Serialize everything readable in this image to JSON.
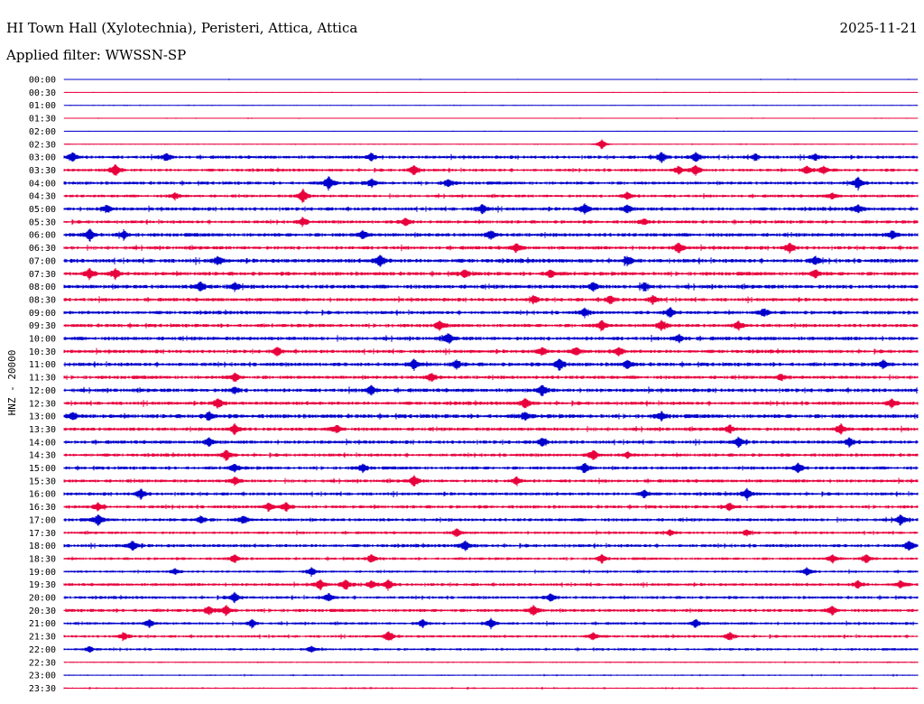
{
  "header": {
    "station": "HI Town Hall (Xylotechnia), Peristeri, Attica, Attica",
    "date": "2025-11-21",
    "filter_label": "Applied filter: WWSSN-SP"
  },
  "chart_data": {
    "type": "line",
    "title": "HI Town Hall (Xylotechnia), Peristeri, Attica, Attica",
    "ylabel": "HNZ - 20000",
    "row_labels": [
      "00:00",
      "00:30",
      "01:00",
      "01:30",
      "02:00",
      "02:30",
      "03:00",
      "03:30",
      "04:00",
      "04:30",
      "05:00",
      "05:30",
      "06:00",
      "06:30",
      "07:00",
      "07:30",
      "08:00",
      "08:30",
      "09:00",
      "09:30",
      "10:00",
      "10:30",
      "11:00",
      "11:30",
      "12:00",
      "12:30",
      "13:00",
      "13:30",
      "14:00",
      "14:30",
      "15:00",
      "15:30",
      "16:00",
      "16:30",
      "17:00",
      "17:30",
      "18:00",
      "18:30",
      "19:00",
      "19:30",
      "20:00",
      "20:30",
      "21:00",
      "21:30",
      "22:00",
      "22:30",
      "23:00",
      "23:30"
    ],
    "row_colors": [
      "#0000cc",
      "#e8003c"
    ],
    "noise_level": [
      0.3,
      0.3,
      0.3,
      0.3,
      0.3,
      0.4,
      1.2,
      1.1,
      1.2,
      1.1,
      1.3,
      1.2,
      1.4,
      1.3,
      1.5,
      1.4,
      1.5,
      1.3,
      1.3,
      1.3,
      1.4,
      1.3,
      1.4,
      1.3,
      1.4,
      1.3,
      1.5,
      1.3,
      1.3,
      1.2,
      1.2,
      1.2,
      1.2,
      1.2,
      1.2,
      1.0,
      1.2,
      1.0,
      0.9,
      1.1,
      1.1,
      1.2,
      1.0,
      1.0,
      0.9,
      0.5,
      0.5,
      0.6
    ],
    "events": [
      {
        "row": 5,
        "x": 0.63,
        "amp": 5
      },
      {
        "row": 6,
        "x": 0.01,
        "amp": 5
      },
      {
        "row": 6,
        "x": 0.12,
        "amp": 4
      },
      {
        "row": 6,
        "x": 0.36,
        "amp": 4
      },
      {
        "row": 6,
        "x": 0.7,
        "amp": 5
      },
      {
        "row": 6,
        "x": 0.74,
        "amp": 5
      },
      {
        "row": 6,
        "x": 0.81,
        "amp": 3
      },
      {
        "row": 6,
        "x": 0.88,
        "amp": 3
      },
      {
        "row": 7,
        "x": 0.06,
        "amp": 6
      },
      {
        "row": 7,
        "x": 0.41,
        "amp": 5
      },
      {
        "row": 7,
        "x": 0.72,
        "amp": 4
      },
      {
        "row": 7,
        "x": 0.74,
        "amp": 5
      },
      {
        "row": 7,
        "x": 0.87,
        "amp": 4
      },
      {
        "row": 7,
        "x": 0.89,
        "amp": 4
      },
      {
        "row": 8,
        "x": 0.31,
        "amp": 7
      },
      {
        "row": 8,
        "x": 0.36,
        "amp": 4
      },
      {
        "row": 8,
        "x": 0.45,
        "amp": 4
      },
      {
        "row": 8,
        "x": 0.93,
        "amp": 6
      },
      {
        "row": 9,
        "x": 0.28,
        "amp": 7
      },
      {
        "row": 9,
        "x": 0.13,
        "amp": 3
      },
      {
        "row": 9,
        "x": 0.66,
        "amp": 4
      },
      {
        "row": 9,
        "x": 0.9,
        "amp": 3
      },
      {
        "row": 10,
        "x": 0.05,
        "amp": 4
      },
      {
        "row": 10,
        "x": 0.49,
        "amp": 5
      },
      {
        "row": 10,
        "x": 0.61,
        "amp": 5
      },
      {
        "row": 10,
        "x": 0.66,
        "amp": 4
      },
      {
        "row": 10,
        "x": 0.93,
        "amp": 4
      },
      {
        "row": 11,
        "x": 0.28,
        "amp": 4
      },
      {
        "row": 11,
        "x": 0.4,
        "amp": 4
      },
      {
        "row": 11,
        "x": 0.68,
        "amp": 3
      },
      {
        "row": 12,
        "x": 0.03,
        "amp": 6
      },
      {
        "row": 12,
        "x": 0.07,
        "amp": 4
      },
      {
        "row": 12,
        "x": 0.35,
        "amp": 4
      },
      {
        "row": 12,
        "x": 0.5,
        "amp": 4
      },
      {
        "row": 12,
        "x": 0.97,
        "amp": 4
      },
      {
        "row": 13,
        "x": 0.53,
        "amp": 4
      },
      {
        "row": 13,
        "x": 0.72,
        "amp": 5
      },
      {
        "row": 13,
        "x": 0.85,
        "amp": 5
      },
      {
        "row": 14,
        "x": 0.37,
        "amp": 6
      },
      {
        "row": 14,
        "x": 0.18,
        "amp": 4
      },
      {
        "row": 14,
        "x": 0.66,
        "amp": 4
      },
      {
        "row": 14,
        "x": 0.88,
        "amp": 4
      },
      {
        "row": 15,
        "x": 0.03,
        "amp": 5
      },
      {
        "row": 15,
        "x": 0.06,
        "amp": 5
      },
      {
        "row": 15,
        "x": 0.47,
        "amp": 4
      },
      {
        "row": 15,
        "x": 0.57,
        "amp": 4
      },
      {
        "row": 15,
        "x": 0.88,
        "amp": 4
      },
      {
        "row": 16,
        "x": 0.16,
        "amp": 5
      },
      {
        "row": 16,
        "x": 0.2,
        "amp": 4
      },
      {
        "row": 16,
        "x": 0.62,
        "amp": 4
      },
      {
        "row": 16,
        "x": 0.68,
        "amp": 4
      },
      {
        "row": 17,
        "x": 0.55,
        "amp": 4
      },
      {
        "row": 17,
        "x": 0.64,
        "amp": 4
      },
      {
        "row": 17,
        "x": 0.69,
        "amp": 4
      },
      {
        "row": 18,
        "x": 0.61,
        "amp": 4
      },
      {
        "row": 18,
        "x": 0.71,
        "amp": 5
      },
      {
        "row": 18,
        "x": 0.82,
        "amp": 4
      },
      {
        "row": 19,
        "x": 0.44,
        "amp": 4
      },
      {
        "row": 19,
        "x": 0.63,
        "amp": 5
      },
      {
        "row": 19,
        "x": 0.7,
        "amp": 5
      },
      {
        "row": 19,
        "x": 0.79,
        "amp": 4
      },
      {
        "row": 20,
        "x": 0.45,
        "amp": 5
      },
      {
        "row": 20,
        "x": 0.72,
        "amp": 4
      },
      {
        "row": 21,
        "x": 0.25,
        "amp": 4
      },
      {
        "row": 21,
        "x": 0.56,
        "amp": 4
      },
      {
        "row": 21,
        "x": 0.6,
        "amp": 4
      },
      {
        "row": 21,
        "x": 0.65,
        "amp": 4
      },
      {
        "row": 22,
        "x": 0.41,
        "amp": 5
      },
      {
        "row": 22,
        "x": 0.46,
        "amp": 4
      },
      {
        "row": 22,
        "x": 0.58,
        "amp": 6
      },
      {
        "row": 22,
        "x": 0.66,
        "amp": 4
      },
      {
        "row": 22,
        "x": 0.96,
        "amp": 4
      },
      {
        "row": 23,
        "x": 0.2,
        "amp": 4
      },
      {
        "row": 23,
        "x": 0.43,
        "amp": 4
      },
      {
        "row": 23,
        "x": 0.84,
        "amp": 3
      },
      {
        "row": 24,
        "x": 0.36,
        "amp": 5
      },
      {
        "row": 24,
        "x": 0.56,
        "amp": 5
      },
      {
        "row": 24,
        "x": 0.2,
        "amp": 3
      },
      {
        "row": 25,
        "x": 0.18,
        "amp": 5
      },
      {
        "row": 25,
        "x": 0.54,
        "amp": 5
      },
      {
        "row": 25,
        "x": 0.97,
        "amp": 4
      },
      {
        "row": 26,
        "x": 0.01,
        "amp": 4
      },
      {
        "row": 26,
        "x": 0.17,
        "amp": 4
      },
      {
        "row": 26,
        "x": 0.54,
        "amp": 4
      },
      {
        "row": 26,
        "x": 0.7,
        "amp": 4
      },
      {
        "row": 27,
        "x": 0.2,
        "amp": 5
      },
      {
        "row": 27,
        "x": 0.32,
        "amp": 4
      },
      {
        "row": 27,
        "x": 0.78,
        "amp": 4
      },
      {
        "row": 27,
        "x": 0.91,
        "amp": 5
      },
      {
        "row": 28,
        "x": 0.17,
        "amp": 4
      },
      {
        "row": 28,
        "x": 0.56,
        "amp": 4
      },
      {
        "row": 28,
        "x": 0.79,
        "amp": 5
      },
      {
        "row": 28,
        "x": 0.92,
        "amp": 4
      },
      {
        "row": 29,
        "x": 0.19,
        "amp": 5
      },
      {
        "row": 29,
        "x": 0.62,
        "amp": 5
      },
      {
        "row": 29,
        "x": 0.66,
        "amp": 3
      },
      {
        "row": 30,
        "x": 0.2,
        "amp": 4
      },
      {
        "row": 30,
        "x": 0.35,
        "amp": 4
      },
      {
        "row": 30,
        "x": 0.61,
        "amp": 5
      },
      {
        "row": 30,
        "x": 0.86,
        "amp": 5
      },
      {
        "row": 31,
        "x": 0.2,
        "amp": 4
      },
      {
        "row": 31,
        "x": 0.41,
        "amp": 5
      },
      {
        "row": 31,
        "x": 0.53,
        "amp": 4
      },
      {
        "row": 32,
        "x": 0.09,
        "amp": 5
      },
      {
        "row": 32,
        "x": 0.68,
        "amp": 4
      },
      {
        "row": 32,
        "x": 0.8,
        "amp": 5
      },
      {
        "row": 33,
        "x": 0.04,
        "amp": 4
      },
      {
        "row": 33,
        "x": 0.24,
        "amp": 4
      },
      {
        "row": 33,
        "x": 0.26,
        "amp": 4
      },
      {
        "row": 33,
        "x": 0.78,
        "amp": 4
      },
      {
        "row": 34,
        "x": 0.04,
        "amp": 5
      },
      {
        "row": 34,
        "x": 0.16,
        "amp": 4
      },
      {
        "row": 34,
        "x": 0.21,
        "amp": 4
      },
      {
        "row": 34,
        "x": 0.98,
        "amp": 5
      },
      {
        "row": 35,
        "x": 0.46,
        "amp": 4
      },
      {
        "row": 35,
        "x": 0.71,
        "amp": 3
      },
      {
        "row": 35,
        "x": 0.8,
        "amp": 3
      },
      {
        "row": 36,
        "x": 0.08,
        "amp": 5
      },
      {
        "row": 36,
        "x": 0.47,
        "amp": 5
      },
      {
        "row": 36,
        "x": 0.99,
        "amp": 5
      },
      {
        "row": 37,
        "x": 0.2,
        "amp": 4
      },
      {
        "row": 37,
        "x": 0.36,
        "amp": 4
      },
      {
        "row": 37,
        "x": 0.63,
        "amp": 4
      },
      {
        "row": 37,
        "x": 0.9,
        "amp": 4
      },
      {
        "row": 37,
        "x": 0.94,
        "amp": 4
      },
      {
        "row": 38,
        "x": 0.13,
        "amp": 3
      },
      {
        "row": 38,
        "x": 0.29,
        "amp": 4
      },
      {
        "row": 38,
        "x": 0.87,
        "amp": 4
      },
      {
        "row": 39,
        "x": 0.3,
        "amp": 5
      },
      {
        "row": 39,
        "x": 0.33,
        "amp": 5
      },
      {
        "row": 39,
        "x": 0.36,
        "amp": 4
      },
      {
        "row": 39,
        "x": 0.38,
        "amp": 5
      },
      {
        "row": 39,
        "x": 0.93,
        "amp": 4
      },
      {
        "row": 39,
        "x": 0.98,
        "amp": 4
      },
      {
        "row": 40,
        "x": 0.2,
        "amp": 5
      },
      {
        "row": 40,
        "x": 0.31,
        "amp": 4
      },
      {
        "row": 40,
        "x": 0.57,
        "amp": 4
      },
      {
        "row": 41,
        "x": 0.17,
        "amp": 4
      },
      {
        "row": 41,
        "x": 0.19,
        "amp": 5
      },
      {
        "row": 41,
        "x": 0.55,
        "amp": 5
      },
      {
        "row": 41,
        "x": 0.9,
        "amp": 4
      },
      {
        "row": 42,
        "x": 0.1,
        "amp": 4
      },
      {
        "row": 42,
        "x": 0.22,
        "amp": 4
      },
      {
        "row": 42,
        "x": 0.42,
        "amp": 4
      },
      {
        "row": 42,
        "x": 0.5,
        "amp": 5
      },
      {
        "row": 42,
        "x": 0.74,
        "amp": 4
      },
      {
        "row": 43,
        "x": 0.07,
        "amp": 4
      },
      {
        "row": 43,
        "x": 0.38,
        "amp": 5
      },
      {
        "row": 43,
        "x": 0.62,
        "amp": 4
      },
      {
        "row": 43,
        "x": 0.78,
        "amp": 4
      },
      {
        "row": 44,
        "x": 0.03,
        "amp": 3
      },
      {
        "row": 44,
        "x": 0.29,
        "amp": 3
      }
    ]
  }
}
